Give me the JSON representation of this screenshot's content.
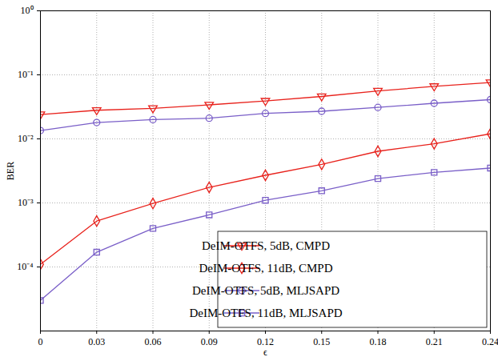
{
  "chart_data": {
    "type": "line",
    "x_label": "ϵ",
    "y_label": "BER",
    "x": [
      0,
      0.03,
      0.06,
      0.09,
      0.12,
      0.15,
      0.18,
      0.21,
      0.24
    ],
    "series": [
      {
        "name": "DeIM-OTFS, 5dB, CMPD",
        "color": "#e8221c",
        "marker": "triangle-down",
        "line_style": "solid",
        "values": [
          0.024,
          0.028,
          0.03,
          0.034,
          0.039,
          0.046,
          0.056,
          0.066,
          0.076
        ]
      },
      {
        "name": "DeIM-OTFS, 11dB, CMPD",
        "color": "#e8221c",
        "marker": "diamond",
        "line_style": "solid",
        "values": [
          0.00011,
          0.00052,
          0.00098,
          0.00175,
          0.0027,
          0.004,
          0.0064,
          0.0084,
          0.012
        ]
      },
      {
        "name": "DeIM-OTFS, 5dB, MLJSAPD",
        "color": "#7a5fc8",
        "marker": "circle",
        "line_style": "solid",
        "values": [
          0.0135,
          0.018,
          0.02,
          0.021,
          0.025,
          0.027,
          0.031,
          0.036,
          0.041
        ]
      },
      {
        "name": "DeIM-OTFS, 11dB, MLJSAPD",
        "color": "#7a5fc8",
        "marker": "square",
        "line_style": "solid",
        "values": [
          3e-05,
          0.00017,
          0.0004,
          0.00065,
          0.0011,
          0.00155,
          0.0024,
          0.003,
          0.0035
        ]
      }
    ],
    "xlim": [
      0,
      0.24
    ],
    "xticks": [
      0,
      0.03,
      0.06,
      0.09,
      0.12,
      0.15,
      0.18,
      0.21,
      0.24
    ],
    "ylim": [
      1e-05,
      1
    ],
    "yticks": [
      {
        "value": 0.0001,
        "label": "10⁻⁴"
      },
      {
        "value": 0.001,
        "label": "10⁻³"
      },
      {
        "value": 0.01,
        "label": "10⁻²"
      },
      {
        "value": 0.1,
        "label": "10⁻¹"
      },
      {
        "value": 1,
        "label": "10⁰"
      }
    ],
    "log": "y",
    "grid": true,
    "legend": "lower right"
  }
}
